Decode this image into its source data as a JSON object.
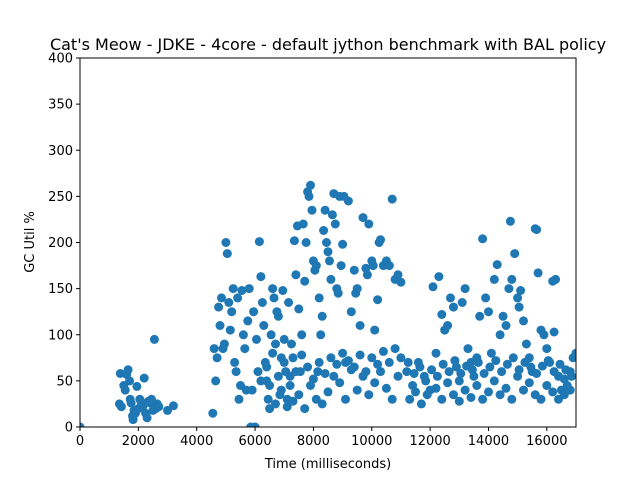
{
  "chart_data": {
    "type": "scatter",
    "title": "Cat's Meow - JDKE - 4core -  default jython benchmark with BAL policy",
    "xlabel": "Time (milliseconds)",
    "ylabel": "GC Util %",
    "xlim": [
      0,
      17000
    ],
    "ylim": [
      0,
      400
    ],
    "x_ticks": [
      0,
      2000,
      4000,
      6000,
      8000,
      10000,
      12000,
      14000,
      16000
    ],
    "y_ticks": [
      0,
      50,
      100,
      150,
      200,
      250,
      300,
      350,
      400
    ],
    "x_tick_labels": [
      "0",
      "2000",
      "4000",
      "6000",
      "8000",
      "10000",
      "12000",
      "14000",
      "16000"
    ],
    "y_tick_labels": [
      "0",
      "50",
      "100",
      "150",
      "200",
      "250",
      "300",
      "350",
      "400"
    ],
    "grid": false,
    "marker_color": "#1f77b4",
    "series": [
      {
        "points": [
          [
            0,
            0
          ],
          [
            1350,
            25
          ],
          [
            1380,
            58
          ],
          [
            1420,
            22
          ],
          [
            1500,
            45
          ],
          [
            1550,
            40
          ],
          [
            1600,
            57
          ],
          [
            1650,
            62
          ],
          [
            1700,
            50
          ],
          [
            1720,
            30
          ],
          [
            1750,
            26
          ],
          [
            1800,
            12
          ],
          [
            1820,
            8
          ],
          [
            1850,
            18
          ],
          [
            1900,
            15
          ],
          [
            1950,
            44
          ],
          [
            2000,
            20
          ],
          [
            2050,
            30
          ],
          [
            2100,
            27
          ],
          [
            2150,
            22
          ],
          [
            2200,
            53
          ],
          [
            2250,
            15
          ],
          [
            2300,
            10
          ],
          [
            2350,
            28
          ],
          [
            2400,
            26
          ],
          [
            2450,
            30
          ],
          [
            2500,
            18
          ],
          [
            2550,
            95
          ],
          [
            2600,
            20
          ],
          [
            2650,
            25
          ],
          [
            2700,
            22
          ],
          [
            3000,
            18
          ],
          [
            3200,
            23
          ],
          [
            4550,
            15
          ],
          [
            4600,
            85
          ],
          [
            4650,
            50
          ],
          [
            4700,
            75
          ],
          [
            4750,
            130
          ],
          [
            4800,
            110
          ],
          [
            4850,
            140
          ],
          [
            4900,
            85
          ],
          [
            4950,
            90
          ],
          [
            5000,
            200
          ],
          [
            5050,
            188
          ],
          [
            5100,
            135
          ],
          [
            5150,
            105
          ],
          [
            5200,
            125
          ],
          [
            5250,
            150
          ],
          [
            5300,
            70
          ],
          [
            5350,
            60
          ],
          [
            5400,
            140
          ],
          [
            5450,
            30
          ],
          [
            5500,
            45
          ],
          [
            5550,
            148
          ],
          [
            5600,
            100
          ],
          [
            5650,
            85
          ],
          [
            5700,
            40
          ],
          [
            5750,
            115
          ],
          [
            5800,
            150
          ],
          [
            5850,
            0
          ],
          [
            5900,
            40
          ],
          [
            5950,
            125
          ],
          [
            6000,
            0
          ],
          [
            6050,
            95
          ],
          [
            6100,
            60
          ],
          [
            6150,
            201
          ],
          [
            6200,
            163
          ],
          [
            6250,
            135
          ],
          [
            6300,
            110
          ],
          [
            6350,
            70
          ],
          [
            6400,
            50
          ],
          [
            6450,
            30
          ],
          [
            6500,
            45
          ],
          [
            6550,
            100
          ],
          [
            6600,
            150
          ],
          [
            6650,
            140
          ],
          [
            6700,
            90
          ],
          [
            6750,
            125
          ],
          [
            6800,
            120
          ],
          [
            6850,
            35
          ],
          [
            6900,
            75
          ],
          [
            6950,
            148
          ],
          [
            7000,
            95
          ],
          [
            7050,
            60
          ],
          [
            7100,
            30
          ],
          [
            7150,
            135
          ],
          [
            7200,
            55
          ],
          [
            7250,
            90
          ],
          [
            7300,
            75
          ],
          [
            7350,
            202
          ],
          [
            7400,
            165
          ],
          [
            7450,
            218
          ],
          [
            7500,
            128
          ],
          [
            7550,
            60
          ],
          [
            7600,
            100
          ],
          [
            7650,
            220
          ],
          [
            7700,
            158
          ],
          [
            7750,
            200
          ],
          [
            7800,
            255
          ],
          [
            7850,
            250
          ],
          [
            7900,
            262
          ],
          [
            7950,
            235
          ],
          [
            8000,
            180
          ],
          [
            8050,
            170
          ],
          [
            8100,
            175
          ],
          [
            8150,
            60
          ],
          [
            8200,
            140
          ],
          [
            8250,
            100
          ],
          [
            8300,
            120
          ],
          [
            8350,
            213
          ],
          [
            8400,
            235
          ],
          [
            8450,
            200
          ],
          [
            8500,
            190
          ],
          [
            8550,
            180
          ],
          [
            8600,
            160
          ],
          [
            8650,
            230
          ],
          [
            8700,
            253
          ],
          [
            8750,
            220
          ],
          [
            8800,
            150
          ],
          [
            8850,
            145
          ],
          [
            8900,
            250
          ],
          [
            8950,
            175
          ],
          [
            9000,
            198
          ],
          [
            9050,
            250
          ],
          [
            9100,
            70
          ],
          [
            9200,
            245
          ],
          [
            9300,
            125
          ],
          [
            9400,
            170
          ],
          [
            9450,
            145
          ],
          [
            9500,
            150
          ],
          [
            9600,
            110
          ],
          [
            9700,
            227
          ],
          [
            9800,
            172
          ],
          [
            9850,
            165
          ],
          [
            9900,
            220
          ],
          [
            10000,
            180
          ],
          [
            10050,
            175
          ],
          [
            10100,
            105
          ],
          [
            10200,
            138
          ],
          [
            10250,
            200
          ],
          [
            10300,
            203
          ],
          [
            10400,
            175
          ],
          [
            10500,
            180
          ],
          [
            10600,
            175
          ],
          [
            10700,
            247
          ],
          [
            10800,
            160
          ],
          [
            10900,
            165
          ],
          [
            11000,
            157
          ],
          [
            6500,
            20
          ],
          [
            6700,
            25
          ],
          [
            6900,
            40
          ],
          [
            7100,
            22
          ],
          [
            7300,
            28
          ],
          [
            7500,
            35
          ],
          [
            7700,
            20
          ],
          [
            7900,
            45
          ],
          [
            8100,
            30
          ],
          [
            8300,
            25
          ],
          [
            8500,
            38
          ],
          [
            8700,
            55
          ],
          [
            8900,
            48
          ],
          [
            9100,
            30
          ],
          [
            9300,
            62
          ],
          [
            9500,
            40
          ],
          [
            9700,
            55
          ],
          [
            9900,
            35
          ],
          [
            10100,
            48
          ],
          [
            10300,
            60
          ],
          [
            10500,
            42
          ],
          [
            10700,
            30
          ],
          [
            10900,
            55
          ],
          [
            6200,
            50
          ],
          [
            6400,
            65
          ],
          [
            6600,
            80
          ],
          [
            6800,
            55
          ],
          [
            7000,
            70
          ],
          [
            7200,
            45
          ],
          [
            7400,
            60
          ],
          [
            7600,
            78
          ],
          [
            7800,
            65
          ],
          [
            8000,
            52
          ],
          [
            8200,
            70
          ],
          [
            8400,
            58
          ],
          [
            8600,
            75
          ],
          [
            8800,
            68
          ],
          [
            9000,
            80
          ],
          [
            9200,
            72
          ],
          [
            9400,
            65
          ],
          [
            9600,
            78
          ],
          [
            9800,
            60
          ],
          [
            10000,
            75
          ],
          [
            10200,
            68
          ],
          [
            10400,
            82
          ],
          [
            10600,
            70
          ],
          [
            10800,
            85
          ],
          [
            11000,
            75
          ],
          [
            11200,
            60
          ],
          [
            11400,
            45
          ],
          [
            11600,
            70
          ],
          [
            11800,
            55
          ],
          [
            12000,
            40
          ],
          [
            12100,
            152
          ],
          [
            12200,
            80
          ],
          [
            12300,
            163
          ],
          [
            12400,
            122
          ],
          [
            12500,
            105
          ],
          [
            12600,
            110
          ],
          [
            12700,
            140
          ],
          [
            12800,
            130
          ],
          [
            12900,
            65
          ],
          [
            13000,
            50
          ],
          [
            13100,
            135
          ],
          [
            13200,
            150
          ],
          [
            13300,
            85
          ],
          [
            13400,
            70
          ],
          [
            13500,
            55
          ],
          [
            13600,
            75
          ],
          [
            13700,
            120
          ],
          [
            13800,
            204
          ],
          [
            13900,
            140
          ],
          [
            14000,
            125
          ],
          [
            14100,
            80
          ],
          [
            14200,
            160
          ],
          [
            14300,
            176
          ],
          [
            14400,
            100
          ],
          [
            14500,
            120
          ],
          [
            14600,
            110
          ],
          [
            14700,
            150
          ],
          [
            14750,
            223
          ],
          [
            14800,
            160
          ],
          [
            14900,
            188
          ],
          [
            15000,
            140
          ],
          [
            15050,
            130
          ],
          [
            15100,
            148
          ],
          [
            15200,
            115
          ],
          [
            15300,
            90
          ],
          [
            15400,
            75
          ],
          [
            15500,
            60
          ],
          [
            15600,
            215
          ],
          [
            15650,
            214
          ],
          [
            15700,
            167
          ],
          [
            15800,
            105
          ],
          [
            15900,
            100
          ],
          [
            16000,
            85
          ],
          [
            16100,
            70
          ],
          [
            16200,
            158
          ],
          [
            16250,
            103
          ],
          [
            16300,
            160
          ],
          [
            16400,
            55
          ],
          [
            16500,
            40
          ],
          [
            16600,
            35
          ],
          [
            16700,
            45
          ],
          [
            16800,
            60
          ],
          [
            16900,
            75
          ],
          [
            17000,
            80
          ],
          [
            11300,
            30
          ],
          [
            11500,
            38
          ],
          [
            11700,
            25
          ],
          [
            11900,
            35
          ],
          [
            12200,
            42
          ],
          [
            12400,
            30
          ],
          [
            12600,
            48
          ],
          [
            12800,
            35
          ],
          [
            13000,
            28
          ],
          [
            13200,
            40
          ],
          [
            13400,
            32
          ],
          [
            13600,
            45
          ],
          [
            13800,
            30
          ],
          [
            14000,
            38
          ],
          [
            14200,
            50
          ],
          [
            14400,
            35
          ],
          [
            14600,
            42
          ],
          [
            14800,
            30
          ],
          [
            15000,
            55
          ],
          [
            15200,
            40
          ],
          [
            15400,
            48
          ],
          [
            15600,
            35
          ],
          [
            15800,
            30
          ],
          [
            16000,
            45
          ],
          [
            16200,
            38
          ],
          [
            16400,
            30
          ],
          [
            16600,
            52
          ],
          [
            16800,
            40
          ],
          [
            11250,
            70
          ],
          [
            11450,
            58
          ],
          [
            11650,
            65
          ],
          [
            11850,
            50
          ],
          [
            12050,
            62
          ],
          [
            12250,
            55
          ],
          [
            12450,
            68
          ],
          [
            12650,
            60
          ],
          [
            12850,
            72
          ],
          [
            13050,
            58
          ],
          [
            13250,
            66
          ],
          [
            13450,
            62
          ],
          [
            13650,
            70
          ],
          [
            13850,
            58
          ],
          [
            14050,
            65
          ],
          [
            14250,
            72
          ],
          [
            14450,
            60
          ],
          [
            14650,
            68
          ],
          [
            14850,
            75
          ],
          [
            15050,
            62
          ],
          [
            15250,
            70
          ],
          [
            15450,
            65
          ],
          [
            15650,
            58
          ],
          [
            15850,
            66
          ],
          [
            16050,
            72
          ],
          [
            16250,
            60
          ],
          [
            16450,
            68
          ],
          [
            16650,
            62
          ],
          [
            16850,
            55
          ]
        ]
      }
    ]
  }
}
